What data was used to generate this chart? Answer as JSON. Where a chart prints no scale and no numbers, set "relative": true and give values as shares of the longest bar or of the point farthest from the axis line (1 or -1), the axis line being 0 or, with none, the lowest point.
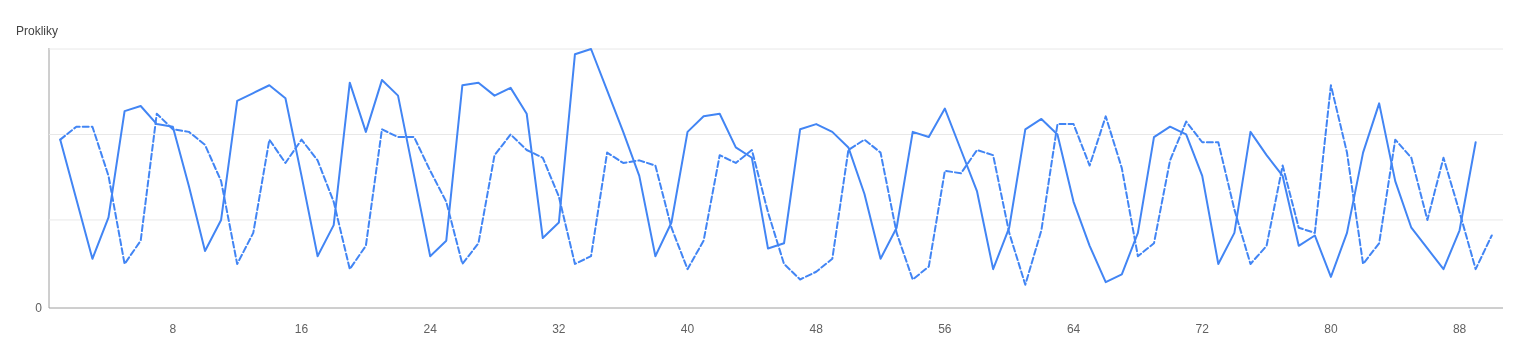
{
  "chart_data": {
    "type": "line",
    "relative": true,
    "ylabel": "Prokliky",
    "x": [
      1,
      2,
      3,
      4,
      5,
      6,
      7,
      8,
      9,
      10,
      11,
      12,
      13,
      14,
      15,
      16,
      17,
      18,
      19,
      20,
      21,
      22,
      23,
      24,
      25,
      26,
      27,
      28,
      29,
      30,
      31,
      32,
      33,
      34,
      35,
      36,
      37,
      38,
      39,
      40,
      41,
      42,
      43,
      44,
      45,
      46,
      47,
      48,
      49,
      50,
      51,
      52,
      53,
      54,
      55,
      56,
      57,
      58,
      59,
      60,
      61,
      62,
      63,
      64,
      65,
      66,
      67,
      68,
      69,
      70,
      71,
      72,
      73,
      74,
      75,
      76,
      77,
      78,
      79,
      80,
      81,
      82,
      83,
      84,
      85,
      86,
      87,
      88,
      89,
      90
    ],
    "xlim": [
      0.3,
      90.7
    ],
    "xticks": [
      8,
      16,
      24,
      32,
      40,
      48,
      56,
      64,
      72,
      80,
      88
    ],
    "annotations": [
      "0"
    ],
    "ref_lines": [
      {
        "axis": "y",
        "value": 0.34,
        "color": "#e8e8e8"
      },
      {
        "axis": "y",
        "value": 0.67,
        "color": "#e8e8e8"
      },
      {
        "axis": "y",
        "value": 1,
        "color": "#e8e8e8"
      }
    ],
    "marker": "none",
    "series": [
      {
        "color": "#4285f4",
        "line_style": "solid",
        "values": [
          0.65,
          0.42,
          0.19,
          0.35,
          0.76,
          0.78,
          0.71,
          0.7,
          0.47,
          0.22,
          0.34,
          0.8,
          0.83,
          0.86,
          0.81,
          0.51,
          0.2,
          0.32,
          0.87,
          0.68,
          0.88,
          0.82,
          0.51,
          0.2,
          0.26,
          0.86,
          0.87,
          0.82,
          0.85,
          0.75,
          0.27,
          0.33,
          0.98,
          1,
          0.84,
          0.68,
          0.51,
          0.2,
          0.33,
          0.68,
          0.74,
          0.75,
          0.62,
          0.58,
          0.23,
          0.25,
          0.69,
          0.71,
          0.68,
          0.62,
          0.44,
          0.19,
          0.31,
          0.68,
          0.66,
          0.77,
          0.61,
          0.45,
          0.15,
          0.31,
          0.69,
          0.73,
          0.67,
          0.41,
          0.24,
          0.1,
          0.13,
          0.29,
          0.66,
          0.7,
          0.67,
          0.51,
          0.17,
          0.29,
          0.68,
          0.59,
          0.51,
          0.24,
          0.28,
          0.12,
          0.29,
          0.6,
          0.79,
          0.49,
          0.31,
          0.23,
          0.15,
          0.3,
          0.64,
          null
        ]
      },
      {
        "color": "#4285f4",
        "line_style": "dashed",
        "values": [
          0.65,
          0.7,
          0.7,
          0.51,
          0.17,
          0.26,
          0.75,
          0.69,
          0.68,
          0.63,
          0.49,
          0.17,
          0.29,
          0.65,
          0.56,
          0.65,
          0.57,
          0.41,
          0.15,
          0.24,
          0.69,
          0.66,
          0.66,
          0.53,
          0.41,
          0.17,
          0.25,
          0.59,
          0.67,
          0.61,
          0.58,
          0.43,
          0.17,
          0.2,
          0.6,
          0.56,
          0.57,
          0.55,
          0.31,
          0.15,
          0.26,
          0.59,
          0.56,
          0.61,
          0.37,
          0.17,
          0.11,
          0.14,
          0.19,
          0.61,
          0.65,
          0.6,
          0.29,
          0.11,
          0.16,
          0.53,
          0.52,
          0.61,
          0.59,
          0.29,
          0.09,
          0.3,
          0.71,
          0.71,
          0.55,
          0.74,
          0.54,
          0.2,
          0.25,
          0.57,
          0.72,
          0.64,
          0.64,
          0.38,
          0.17,
          0.24,
          0.55,
          0.31,
          0.29,
          0.86,
          0.6,
          0.17,
          0.25,
          0.65,
          0.58,
          0.34,
          0.58,
          0.37,
          0.15,
          0.28
        ]
      }
    ]
  }
}
